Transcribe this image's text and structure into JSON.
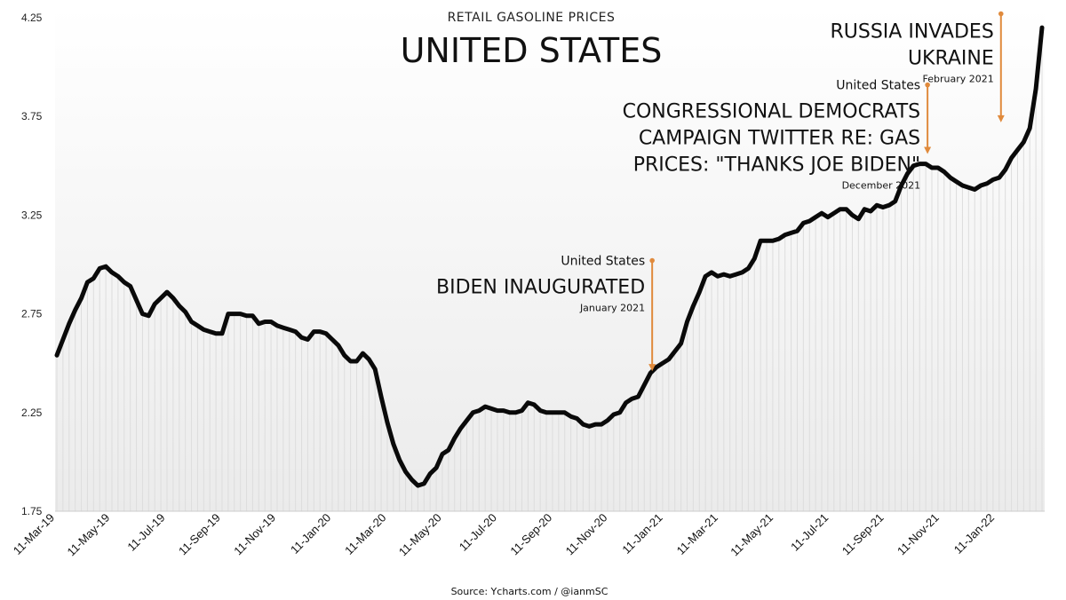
{
  "chart_data": {
    "type": "line",
    "subtitle": "RETAIL GASOLINE PRICES",
    "title": "UNITED STATES",
    "source": "Source: Ycharts.com / @ianmSC",
    "ylim": [
      1.75,
      4.25
    ],
    "yticks": [
      "1.75",
      "2.25",
      "2.75",
      "3.25",
      "3.75",
      "4.25"
    ],
    "xticks": [
      "11-Mar-19",
      "11-May-19",
      "11-Jul-19",
      "11-Sep-19",
      "11-Nov-19",
      "11-Jan-20",
      "11-Mar-20",
      "11-May-20",
      "11-Jul-20",
      "11-Sep-20",
      "11-Nov-20",
      "11-Jan-21",
      "11-Mar-21",
      "11-May-21",
      "11-Jul-21",
      "11-Sep-21",
      "11-Nov-21",
      "11-Jan-22"
    ],
    "grid": false,
    "series": [
      {
        "values": [
          2.54,
          2.62,
          2.7,
          2.77,
          2.83,
          2.91,
          2.93,
          2.98,
          2.99,
          2.96,
          2.94,
          2.91,
          2.89,
          2.82,
          2.75,
          2.74,
          2.8,
          2.83,
          2.86,
          2.83,
          2.79,
          2.76,
          2.71,
          2.69,
          2.67,
          2.66,
          2.65,
          2.65,
          2.75,
          2.75,
          2.75,
          2.74,
          2.74,
          2.7,
          2.71,
          2.71,
          2.69,
          2.68,
          2.67,
          2.66,
          2.63,
          2.62,
          2.66,
          2.66,
          2.65,
          2.62,
          2.59,
          2.54,
          2.51,
          2.51,
          2.55,
          2.52,
          2.47,
          2.33,
          2.2,
          2.09,
          2.01,
          1.95,
          1.91,
          1.88,
          1.89,
          1.94,
          1.97,
          2.04,
          2.06,
          2.12,
          2.17,
          2.21,
          2.25,
          2.26,
          2.28,
          2.27,
          2.26,
          2.26,
          2.25,
          2.25,
          2.26,
          2.3,
          2.29,
          2.26,
          2.25,
          2.25,
          2.25,
          2.25,
          2.23,
          2.22,
          2.19,
          2.18,
          2.19,
          2.19,
          2.21,
          2.24,
          2.25,
          2.3,
          2.32,
          2.33,
          2.39,
          2.45,
          2.48,
          2.5,
          2.52,
          2.56,
          2.6,
          2.71,
          2.79,
          2.86,
          2.94,
          2.96,
          2.94,
          2.95,
          2.94,
          2.95,
          2.96,
          2.98,
          3.03,
          3.12,
          3.12,
          3.12,
          3.13,
          3.15,
          3.16,
          3.17,
          3.21,
          3.22,
          3.24,
          3.26,
          3.24,
          3.26,
          3.28,
          3.28,
          3.25,
          3.23,
          3.28,
          3.27,
          3.3,
          3.29,
          3.3,
          3.32,
          3.4,
          3.46,
          3.5,
          3.51,
          3.51,
          3.49,
          3.49,
          3.47,
          3.44,
          3.42,
          3.4,
          3.39,
          3.38,
          3.4,
          3.41,
          3.43,
          3.44,
          3.48,
          3.54,
          3.58,
          3.62,
          3.69,
          3.89,
          4.2
        ]
      }
    ],
    "annotations": [
      {
        "at_index": 97,
        "line_top": 3.02,
        "arrow_to": 2.46,
        "label_small": "United States",
        "label_big": [
          "BIDEN INAUGURATED"
        ],
        "label_date": "January 2021"
      },
      {
        "at_index": 142,
        "line_top": 3.91,
        "arrow_to": 3.56,
        "label_small": "United States",
        "label_big": [
          "CONGRESSIONAL DEMOCRATS",
          "CAMPAIGN TWITTER RE: GAS",
          "PRICES: \"THANKS JOE BIDEN\""
        ],
        "label_date": "December 2021"
      },
      {
        "at_index": 154,
        "line_top": 4.27,
        "arrow_to": 3.72,
        "label_small": "",
        "label_big": [
          "RUSSIA INVADES",
          "UKRAINE"
        ],
        "label_date": "February 2021"
      }
    ],
    "colors": {
      "line": "#0a0a0a",
      "annotation": "#e08a3c",
      "fill_hatch": "#dddddd"
    }
  }
}
